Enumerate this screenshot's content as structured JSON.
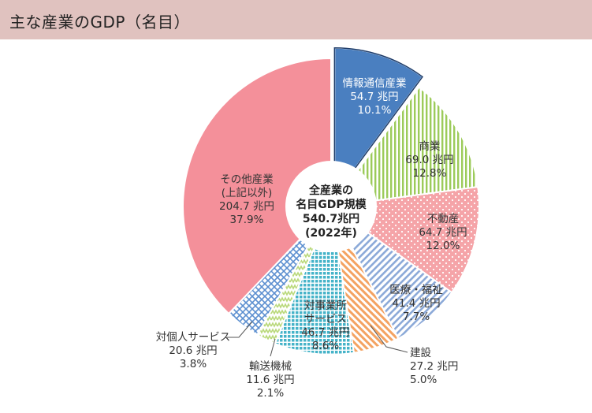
{
  "header": {
    "title": "主な産業のGDP（名目）"
  },
  "center": {
    "line1": "全産業の",
    "line2": "名目GDP規模",
    "line3": "540.7兆円",
    "line4": "(2022年)"
  },
  "colors": {
    "header_bg": "#e0c2bf",
    "info_comm": "#4a7fc0",
    "commerce": "#9ccb5a",
    "real_estate": "#f5a4a8",
    "medical": "#8ba9d8",
    "construction": "#f4a362",
    "business_services": "#45b3c8",
    "transport_machinery": "#b9d97a",
    "personal_services": "#5c8fd0",
    "other": "#f4909a"
  },
  "chart_data": {
    "type": "pie",
    "title": "主な産業のGDP（名目）",
    "total_label": "540.7兆円",
    "slices": [
      {
        "name": "情報通信産業",
        "value": 54.7,
        "value_label": "54.7 兆円",
        "share": 10.1,
        "share_label": "10.1%"
      },
      {
        "name": "商業",
        "value": 69.0,
        "value_label": "69.0 兆円",
        "share": 12.8,
        "share_label": "12.8%"
      },
      {
        "name": "不動産",
        "value": 64.7,
        "value_label": "64.7 兆円",
        "share": 12.0,
        "share_label": "12.0%"
      },
      {
        "name": "医療・福祉",
        "value": 41.4,
        "value_label": "41.4 兆円",
        "share": 7.7,
        "share_label": "7.7%"
      },
      {
        "name": "建設",
        "value": 27.2,
        "value_label": "27.2 兆円",
        "share": 5.0,
        "share_label": "5.0%"
      },
      {
        "name": "対事業所サービス",
        "name_lines": [
          "対事業所",
          "サービス"
        ],
        "value": 46.7,
        "value_label": "46.7 兆円",
        "share": 8.6,
        "share_label": "8.6%"
      },
      {
        "name": "輸送機械",
        "value": 11.6,
        "value_label": "11.6 兆円",
        "share": 2.1,
        "share_label": "2.1%"
      },
      {
        "name": "対個人サービス",
        "value": 20.6,
        "value_label": "20.6 兆円",
        "share": 3.8,
        "share_label": "3.8%"
      },
      {
        "name": "その他産業(上記以外)",
        "name_lines": [
          "その他産業",
          "(上記以外)"
        ],
        "value": 204.7,
        "value_label": "204.7 兆円",
        "share": 37.9,
        "share_label": "37.9%"
      }
    ]
  }
}
